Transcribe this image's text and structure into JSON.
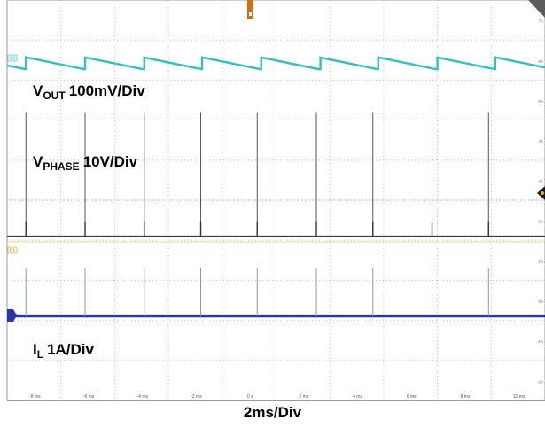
{
  "chart_data": {
    "type": "line",
    "title": "",
    "xlabel": "2ms/Div",
    "x_ticks": [
      "-8 ms",
      "-6 ms",
      "-4 ms",
      "-2 ms",
      "0 s",
      "2 ms",
      "4 ms",
      "6 ms",
      "8 ms",
      "10 ms"
    ],
    "xlim_ms": [
      -9,
      11
    ],
    "grid": true,
    "channels": [
      {
        "badge": "C2",
        "color": "#2fbfc4",
        "label_main": "V",
        "label_sub": "OUT",
        "label_rest": "100mV/Div"
      },
      {
        "badge": "",
        "color": "#555555",
        "label_main": "V",
        "label_sub": "PHASE",
        "label_rest": "10V/Div"
      },
      {
        "badge": "C1",
        "color": "#2a35a8",
        "label_main": "I",
        "label_sub": "L",
        "label_rest": "1A/Div"
      }
    ],
    "series": [
      {
        "name": "V_OUT",
        "shape": "sawtooth",
        "period_ms": 2.18,
        "first_reset_ms": -8.3,
        "drop_div": 0.12,
        "ramp_div": 0.3
      },
      {
        "name": "V_PHASE",
        "shape": "pulse",
        "pulse_times_ms": [
          -8.3,
          -6.1,
          -3.9,
          -1.8,
          0.3,
          2.5,
          4.6,
          6.8,
          8.9,
          11.1
        ],
        "pulse_height_div": 3.1
      },
      {
        "name": "I_L",
        "shape": "pulse",
        "pulse_times_ms": [
          -8.3,
          -6.1,
          -3.9,
          -1.8,
          0.3,
          2.5,
          4.6,
          6.8,
          8.9,
          11.1
        ],
        "pulse_height_div": 1.2
      }
    ],
    "right_axis_ticks": [
      "7A",
      "6A",
      "5A",
      "4A",
      "3A",
      "2A",
      "1A",
      "0A",
      "-1A",
      "-2A"
    ]
  }
}
